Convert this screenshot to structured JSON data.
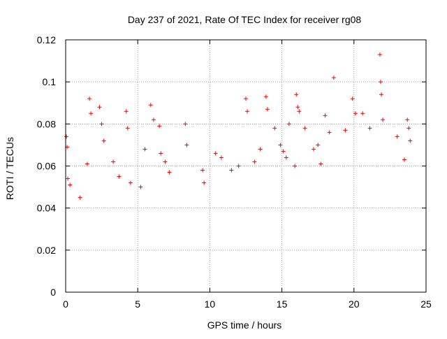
{
  "chart_data": {
    "type": "scatter",
    "title": "Day 237 of 2021, Rate Of TEC Index for receiver rg08",
    "xlabel": "GPS time / hours",
    "ylabel": "ROTI / TECUs",
    "xlim": [
      0,
      25
    ],
    "ylim": [
      0,
      0.12
    ],
    "x_ticks": [
      "0",
      "5",
      "10",
      "15",
      "20",
      "25"
    ],
    "y_ticks": [
      "0",
      "0.02",
      "0.04",
      "0.06",
      "0.08",
      "0.1",
      "0.12"
    ],
    "grid": true,
    "legend": "none",
    "marker": "+",
    "series": [
      {
        "color": "#ff0000",
        "x": [
          0.05,
          0.1,
          0.15,
          0.3,
          1.0,
          1.5,
          1.65,
          1.75,
          2.35,
          2.5,
          2.65,
          3.3,
          3.7,
          4.2,
          4.3,
          4.5,
          5.2,
          5.5,
          5.9,
          6.1,
          6.5,
          6.6,
          6.9,
          7.2,
          8.3,
          8.4,
          9.5,
          9.6,
          10.4,
          10.8,
          11.5,
          12.0,
          12.5,
          12.6,
          13.1,
          13.5,
          13.9,
          14.0,
          14.5,
          14.9,
          15.1,
          15.3,
          15.5,
          15.9,
          16.0,
          16.1,
          16.2,
          16.6,
          17.2,
          17.5,
          17.7,
          18.0,
          18.3,
          18.6,
          19.4,
          19.9,
          20.1,
          20.6,
          21.1,
          21.8,
          21.85,
          21.9,
          22.0,
          23.0,
          23.5,
          23.7,
          23.8,
          23.9
        ],
        "y": [
          0.074,
          0.069,
          0.054,
          0.051,
          0.045,
          0.061,
          0.092,
          0.085,
          0.088,
          0.08,
          0.072,
          0.062,
          0.055,
          0.086,
          0.078,
          0.052,
          0.05,
          0.068,
          0.089,
          0.082,
          0.079,
          0.066,
          0.062,
          0.057,
          0.08,
          0.07,
          0.058,
          0.052,
          0.066,
          0.064,
          0.058,
          0.06,
          0.092,
          0.086,
          0.062,
          0.068,
          0.093,
          0.087,
          0.078,
          0.07,
          0.067,
          0.064,
          0.08,
          0.06,
          0.094,
          0.088,
          0.086,
          0.078,
          0.068,
          0.07,
          0.061,
          0.084,
          0.076,
          0.102,
          0.077,
          0.092,
          0.085,
          0.085,
          0.078,
          0.113,
          0.1,
          0.094,
          0.082,
          0.074,
          0.063,
          0.082,
          0.078,
          0.072
        ]
      }
    ]
  }
}
